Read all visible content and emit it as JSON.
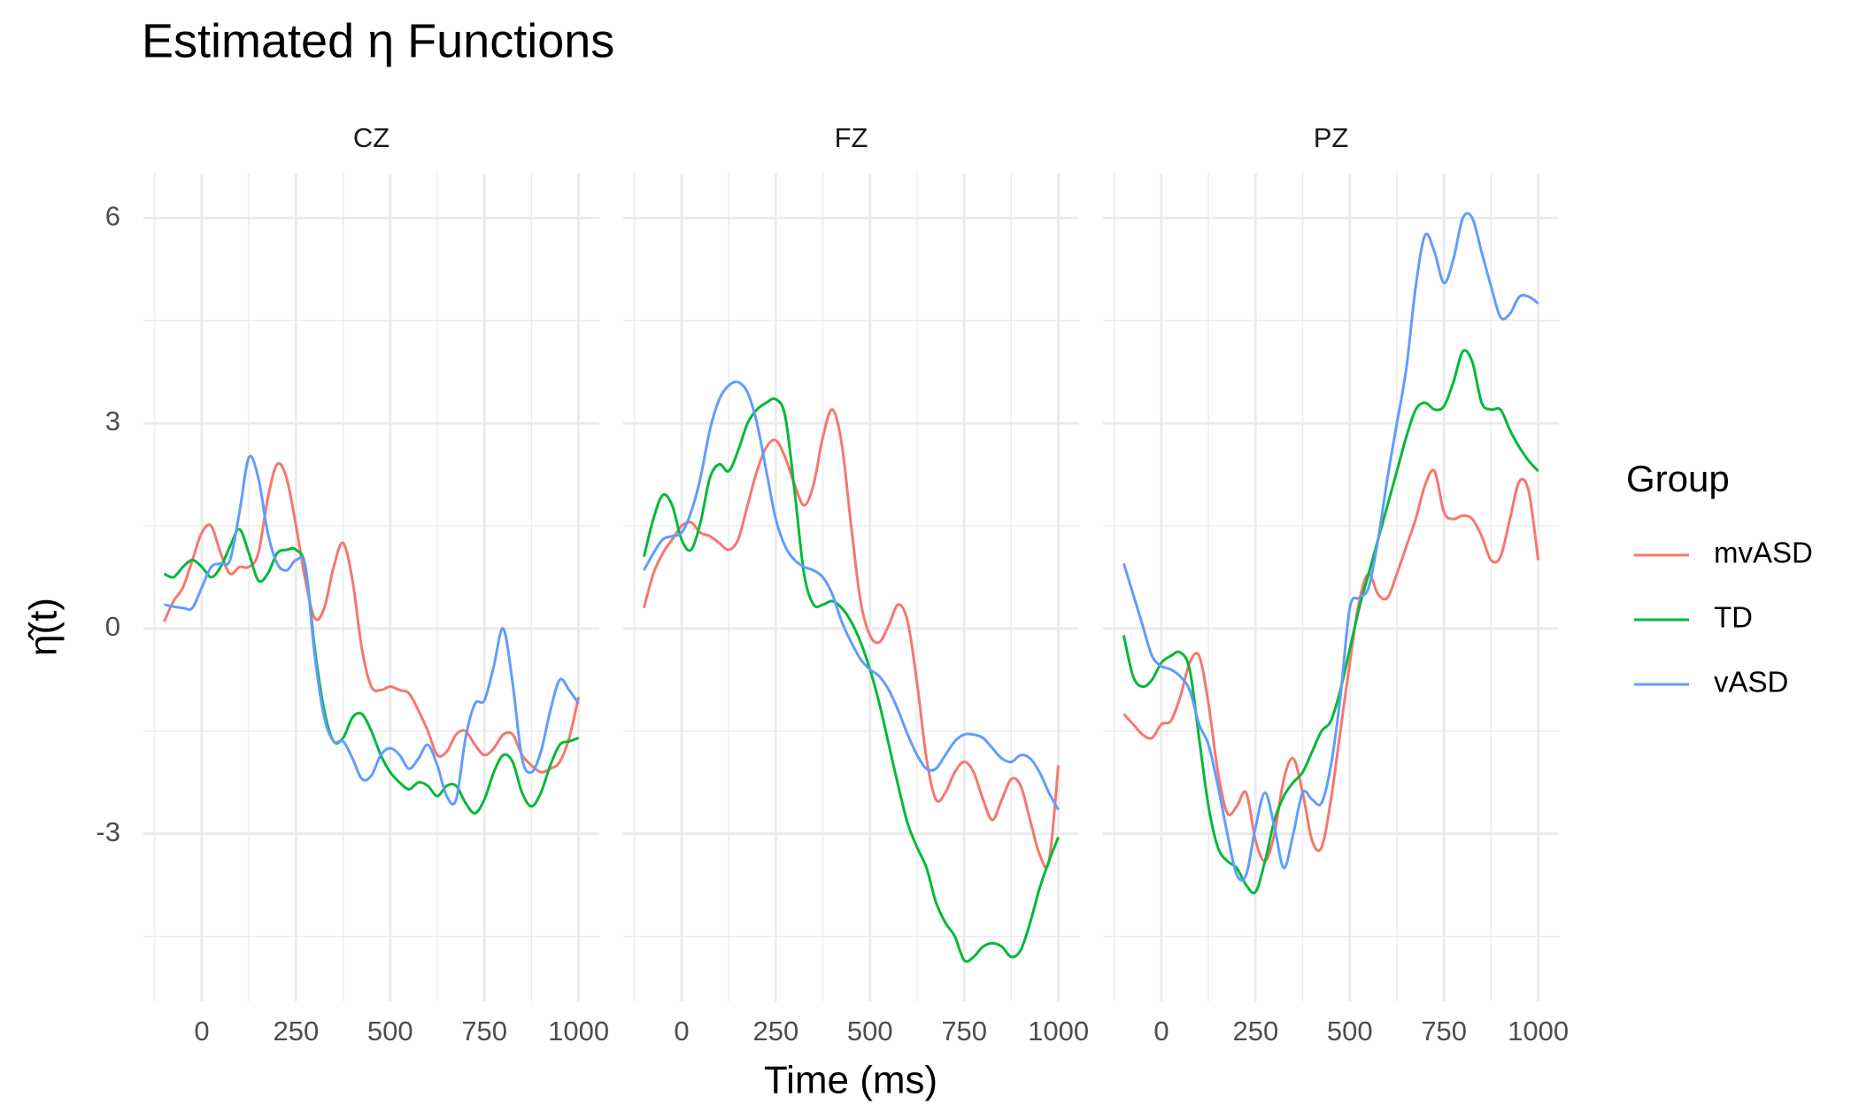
{
  "title": "Estimated η Functions",
  "xlabel": "Time (ms)",
  "ylabel": "η̂(t)",
  "legend": {
    "title": "Group",
    "position": "right"
  },
  "chart_data": [
    {
      "type": "line",
      "title": "CZ",
      "x": [
        -100,
        -75,
        -50,
        -25,
        0,
        25,
        50,
        75,
        100,
        125,
        150,
        175,
        200,
        225,
        250,
        275,
        300,
        325,
        350,
        375,
        400,
        425,
        450,
        475,
        500,
        525,
        550,
        575,
        600,
        625,
        650,
        675,
        700,
        725,
        750,
        775,
        800,
        825,
        850,
        875,
        900,
        925,
        950,
        975,
        1000
      ],
      "xlim": [
        -155,
        1055
      ],
      "ylim": [
        -5.45,
        6.65
      ],
      "xticks": [
        0,
        250,
        500,
        750,
        1000
      ],
      "yticks": [
        -3,
        0,
        3,
        6
      ],
      "xminor": [
        -125,
        125,
        375,
        625,
        875
      ],
      "yminor": [
        -4.5,
        -1.5,
        1.5,
        4.5
      ],
      "grid": true,
      "series": [
        {
          "name": "mvASD",
          "color": "#F8766D",
          "values": [
            0.1,
            0.4,
            0.6,
            1.0,
            1.4,
            1.5,
            1.1,
            0.8,
            0.9,
            0.9,
            1.1,
            1.9,
            2.4,
            2.2,
            1.5,
            0.7,
            0.15,
            0.3,
            0.9,
            1.25,
            0.7,
            -0.3,
            -0.85,
            -0.9,
            -0.85,
            -0.9,
            -0.95,
            -1.2,
            -1.5,
            -1.85,
            -1.8,
            -1.55,
            -1.5,
            -1.7,
            -1.85,
            -1.75,
            -1.55,
            -1.55,
            -1.85,
            -2.0,
            -2.1,
            -2.05,
            -1.95,
            -1.6,
            -1.0
          ]
        },
        {
          "name": "TD",
          "color": "#00BA38",
          "values": [
            0.8,
            0.75,
            0.9,
            1.0,
            0.9,
            0.75,
            0.9,
            1.2,
            1.45,
            1.1,
            0.7,
            0.8,
            1.1,
            1.15,
            1.15,
            0.9,
            -0.3,
            -1.2,
            -1.65,
            -1.6,
            -1.3,
            -1.25,
            -1.5,
            -1.85,
            -2.1,
            -2.25,
            -2.35,
            -2.25,
            -2.3,
            -2.45,
            -2.3,
            -2.3,
            -2.55,
            -2.7,
            -2.5,
            -2.1,
            -1.85,
            -1.95,
            -2.4,
            -2.6,
            -2.4,
            -2.0,
            -1.7,
            -1.65,
            -1.6
          ]
        },
        {
          "name": "vASD",
          "color": "#619CFF",
          "values": [
            0.35,
            0.32,
            0.3,
            0.3,
            0.6,
            0.9,
            0.95,
            1.0,
            1.7,
            2.5,
            2.2,
            1.4,
            0.95,
            0.85,
            1.0,
            0.9,
            -0.4,
            -1.3,
            -1.65,
            -1.65,
            -1.9,
            -2.2,
            -2.15,
            -1.85,
            -1.75,
            -1.85,
            -2.05,
            -1.9,
            -1.7,
            -2.0,
            -2.45,
            -2.5,
            -1.6,
            -1.1,
            -1.05,
            -0.55,
            0.0,
            -0.8,
            -1.9,
            -2.1,
            -1.8,
            -1.2,
            -0.75,
            -0.9,
            -1.1
          ]
        }
      ]
    },
    {
      "type": "line",
      "title": "FZ",
      "x": [
        -100,
        -75,
        -50,
        -25,
        0,
        25,
        50,
        75,
        100,
        125,
        150,
        175,
        200,
        225,
        250,
        275,
        300,
        325,
        350,
        375,
        400,
        425,
        450,
        475,
        500,
        525,
        550,
        575,
        600,
        625,
        650,
        675,
        700,
        725,
        750,
        775,
        800,
        825,
        850,
        875,
        900,
        925,
        950,
        975,
        1000
      ],
      "xlim": [
        -155,
        1055
      ],
      "ylim": [
        -5.45,
        6.65
      ],
      "xticks": [
        0,
        250,
        500,
        750,
        1000
      ],
      "yticks": [
        -3,
        0,
        3,
        6
      ],
      "xminor": [
        -125,
        125,
        375,
        625,
        875
      ],
      "yminor": [
        -4.5,
        -1.5,
        1.5,
        4.5
      ],
      "grid": true,
      "series": [
        {
          "name": "mvASD",
          "color": "#F8766D",
          "values": [
            0.3,
            0.8,
            1.1,
            1.3,
            1.5,
            1.55,
            1.4,
            1.35,
            1.25,
            1.15,
            1.3,
            1.8,
            2.3,
            2.65,
            2.75,
            2.5,
            2.1,
            1.8,
            2.1,
            2.8,
            3.2,
            2.7,
            1.5,
            0.4,
            -0.1,
            -0.2,
            0.05,
            0.35,
            0.1,
            -0.8,
            -1.9,
            -2.5,
            -2.4,
            -2.1,
            -1.95,
            -2.1,
            -2.5,
            -2.8,
            -2.5,
            -2.2,
            -2.3,
            -2.8,
            -3.3,
            -3.4,
            -2.0
          ]
        },
        {
          "name": "TD",
          "color": "#00BA38",
          "values": [
            1.05,
            1.6,
            1.95,
            1.8,
            1.3,
            1.15,
            1.55,
            2.2,
            2.4,
            2.3,
            2.6,
            3.0,
            3.2,
            3.3,
            3.35,
            3.1,
            2.0,
            0.8,
            0.35,
            0.35,
            0.4,
            0.3,
            0.1,
            -0.2,
            -0.6,
            -1.1,
            -1.7,
            -2.3,
            -2.85,
            -3.2,
            -3.5,
            -4.0,
            -4.3,
            -4.5,
            -4.85,
            -4.8,
            -4.65,
            -4.6,
            -4.65,
            -4.8,
            -4.7,
            -4.3,
            -3.8,
            -3.4,
            -3.05
          ]
        },
        {
          "name": "vASD",
          "color": "#619CFF",
          "values": [
            0.85,
            1.1,
            1.3,
            1.35,
            1.4,
            1.7,
            2.2,
            2.9,
            3.35,
            3.55,
            3.6,
            3.45,
            3.0,
            2.3,
            1.6,
            1.2,
            1.0,
            0.9,
            0.85,
            0.75,
            0.5,
            0.1,
            -0.2,
            -0.45,
            -0.6,
            -0.7,
            -0.9,
            -1.2,
            -1.55,
            -1.85,
            -2.05,
            -2.05,
            -1.85,
            -1.65,
            -1.55,
            -1.55,
            -1.6,
            -1.75,
            -1.9,
            -1.95,
            -1.85,
            -1.9,
            -2.1,
            -2.4,
            -2.65
          ]
        }
      ]
    },
    {
      "type": "line",
      "title": "PZ",
      "x": [
        -100,
        -75,
        -50,
        -25,
        0,
        25,
        50,
        75,
        100,
        125,
        150,
        175,
        200,
        225,
        250,
        275,
        300,
        325,
        350,
        375,
        400,
        425,
        450,
        475,
        500,
        525,
        550,
        575,
        600,
        625,
        650,
        675,
        700,
        725,
        750,
        775,
        800,
        825,
        850,
        875,
        900,
        925,
        950,
        975,
        1000
      ],
      "xlim": [
        -155,
        1055
      ],
      "ylim": [
        -5.45,
        6.65
      ],
      "xticks": [
        0,
        250,
        500,
        750,
        1000
      ],
      "yticks": [
        -3,
        0,
        3,
        6
      ],
      "xminor": [
        -125,
        125,
        375,
        625,
        875
      ],
      "yminor": [
        -4.5,
        -1.5,
        1.5,
        4.5
      ],
      "grid": true,
      "series": [
        {
          "name": "mvASD",
          "color": "#F8766D",
          "values": [
            -1.25,
            -1.4,
            -1.55,
            -1.6,
            -1.4,
            -1.35,
            -1.0,
            -0.5,
            -0.4,
            -1.1,
            -2.1,
            -2.7,
            -2.6,
            -2.4,
            -3.1,
            -3.4,
            -3.0,
            -2.2,
            -1.9,
            -2.4,
            -3.1,
            -3.2,
            -2.5,
            -1.5,
            -0.5,
            0.4,
            0.8,
            0.5,
            0.45,
            0.8,
            1.2,
            1.6,
            2.1,
            2.3,
            1.7,
            1.6,
            1.65,
            1.6,
            1.35,
            1.0,
            1.05,
            1.6,
            2.15,
            2.0,
            1.0
          ]
        },
        {
          "name": "TD",
          "color": "#00BA38",
          "values": [
            -0.1,
            -0.7,
            -0.85,
            -0.75,
            -0.5,
            -0.4,
            -0.35,
            -0.6,
            -1.6,
            -2.6,
            -3.2,
            -3.4,
            -3.5,
            -3.75,
            -3.85,
            -3.4,
            -2.8,
            -2.45,
            -2.25,
            -2.1,
            -1.8,
            -1.5,
            -1.35,
            -0.9,
            -0.3,
            0.3,
            0.8,
            1.3,
            1.8,
            2.3,
            2.8,
            3.2,
            3.3,
            3.2,
            3.25,
            3.6,
            4.05,
            3.9,
            3.3,
            3.2,
            3.2,
            2.9,
            2.65,
            2.45,
            2.3
          ]
        },
        {
          "name": "vASD",
          "color": "#619CFF",
          "values": [
            0.95,
            0.5,
            0.05,
            -0.4,
            -0.55,
            -0.6,
            -0.7,
            -0.9,
            -1.4,
            -1.7,
            -2.3,
            -3.0,
            -3.6,
            -3.6,
            -2.9,
            -2.4,
            -2.9,
            -3.5,
            -3.0,
            -2.4,
            -2.5,
            -2.55,
            -2.0,
            -1.0,
            0.3,
            0.45,
            0.6,
            1.3,
            2.2,
            3.0,
            3.8,
            5.0,
            5.75,
            5.5,
            5.05,
            5.4,
            6.0,
            6.0,
            5.5,
            5.0,
            4.55,
            4.6,
            4.85,
            4.85,
            4.75
          ]
        }
      ]
    }
  ]
}
